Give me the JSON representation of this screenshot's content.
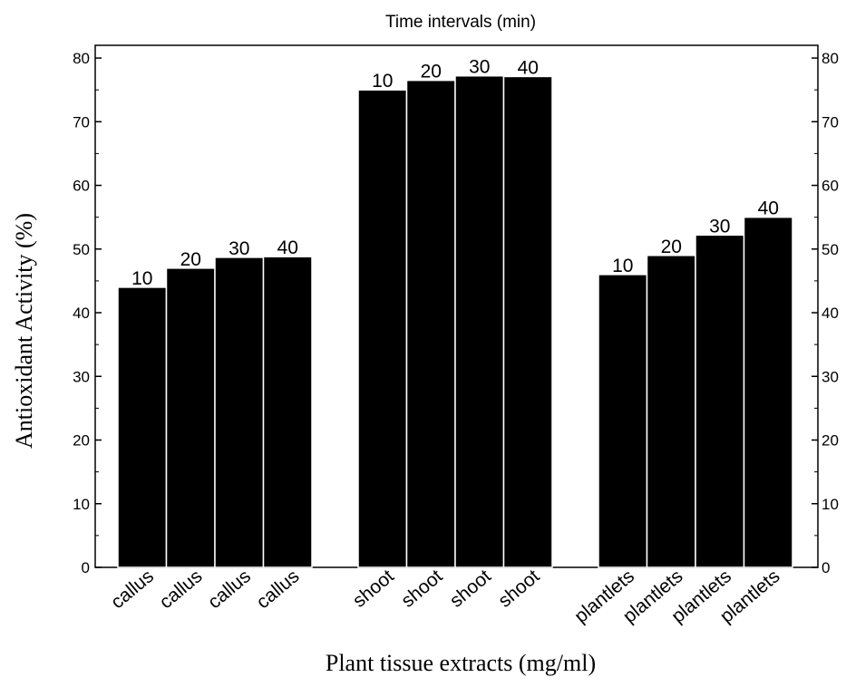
{
  "chart_data": {
    "type": "bar",
    "title": "Time intervals (min)",
    "xlabel": "Plant tissue extracts (mg/ml)",
    "ylabel": "Antioxidant Activity (%)",
    "ylim": [
      0,
      82
    ],
    "yticks": [
      0,
      10,
      20,
      30,
      40,
      50,
      60,
      70,
      80
    ],
    "grid": false,
    "legend": "none",
    "categories": [
      "callus",
      "callus",
      "callus",
      "callus",
      "shoot",
      "shoot",
      "shoot",
      "shoot",
      "plantlets",
      "plantlets",
      "plantlets",
      "plantlets"
    ],
    "groups": [
      {
        "name": "callus",
        "bars": [
          {
            "label": "10",
            "value": 44
          },
          {
            "label": "20",
            "value": 47
          },
          {
            "label": "30",
            "value": 48.7
          },
          {
            "label": "40",
            "value": 48.8
          }
        ]
      },
      {
        "name": "shoot",
        "bars": [
          {
            "label": "10",
            "value": 75
          },
          {
            "label": "20",
            "value": 76.5
          },
          {
            "label": "30",
            "value": 77.2
          },
          {
            "label": "40",
            "value": 77.1
          }
        ]
      },
      {
        "name": "plantlets",
        "bars": [
          {
            "label": "10",
            "value": 46
          },
          {
            "label": "20",
            "value": 49
          },
          {
            "label": "30",
            "value": 52.2
          },
          {
            "label": "40",
            "value": 55
          }
        ]
      }
    ],
    "colors": {
      "bar": "#000000",
      "bar_edge": "#ffffff",
      "axis": "#000000"
    }
  }
}
